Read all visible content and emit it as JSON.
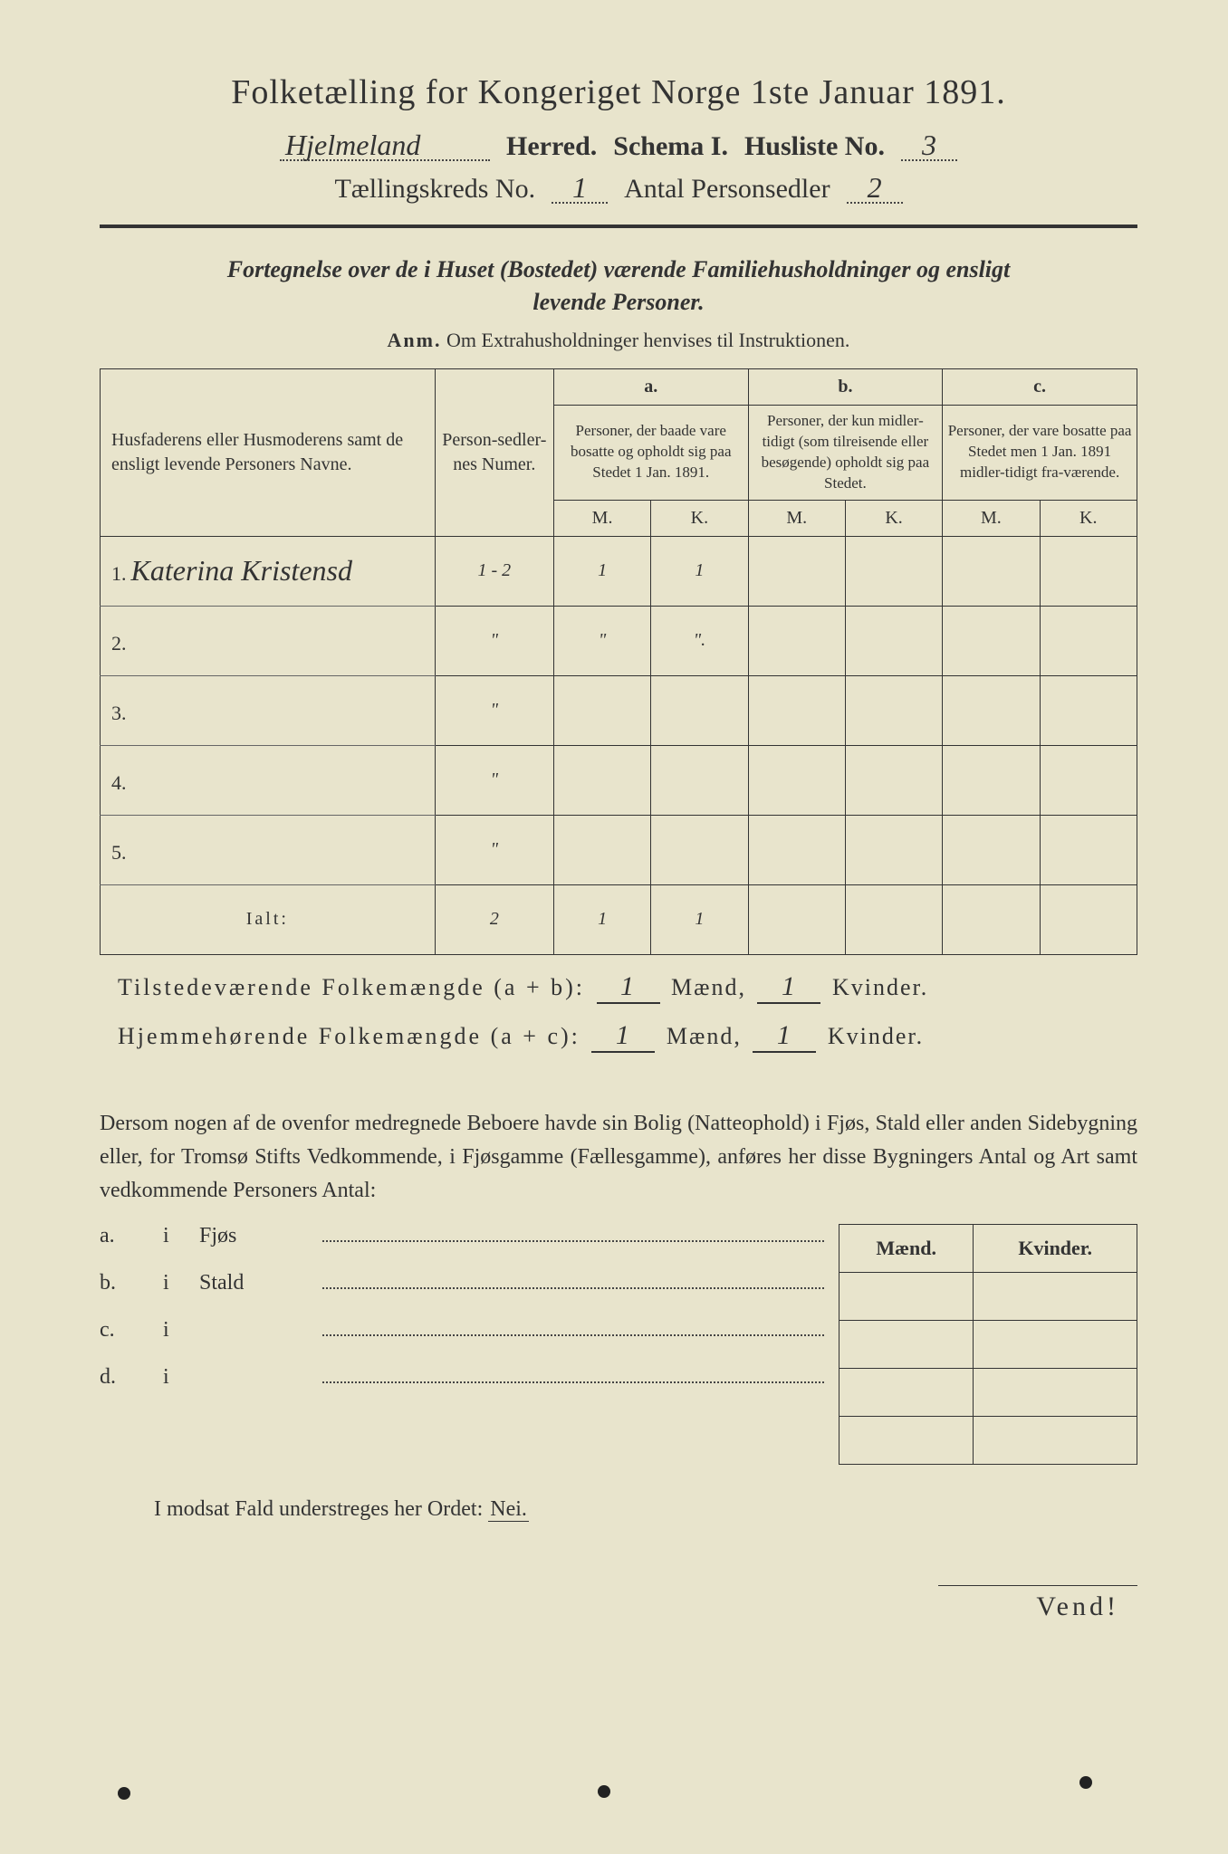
{
  "header": {
    "title": "Folketælling for Kongeriget Norge 1ste Januar 1891.",
    "herred": "Hjelmeland",
    "herred_label": "Herred.",
    "schema_label": "Schema I.",
    "husliste_label": "Husliste No.",
    "husliste_no": "3",
    "kreds_label": "Tællingskreds No.",
    "kreds_no": "1",
    "antal_label": "Antal Personsedler",
    "antal": "2"
  },
  "subtitle": {
    "line1": "Fortegnelse over de i Huset (Bostedet) værende Familiehusholdninger og ensligt",
    "line2": "levende Personer.",
    "anm_label": "Anm.",
    "anm_text": "Om Extrahusholdninger henvises til Instruktionen."
  },
  "table": {
    "columns": {
      "names": "Husfaderens eller Husmoderens samt de ensligt levende Personers Navne.",
      "person_no": "Person-sedler-nes Numer.",
      "a_label": "a.",
      "a_text": "Personer, der baade vare bosatte og opholdt sig paa Stedet 1 Jan. 1891.",
      "b_label": "b.",
      "b_text": "Personer, der kun midler-tidigt (som tilreisende eller besøgende) opholdt sig paa Stedet.",
      "c_label": "c.",
      "c_text": "Personer, der vare bosatte paa Stedet men 1 Jan. 1891 midler-tidigt fra-værende.",
      "M": "M.",
      "K": "K."
    },
    "rows": [
      {
        "n": "1.",
        "name": "Katerina Kristensd",
        "pno": "1 - 2",
        "aM": "1",
        "aK": "1",
        "bM": "",
        "bK": "",
        "cM": "",
        "cK": ""
      },
      {
        "n": "2.",
        "name": "",
        "pno": "\"",
        "aM": "\"",
        "aK": "\".",
        "bM": "",
        "bK": "",
        "cM": "",
        "cK": ""
      },
      {
        "n": "3.",
        "name": "",
        "pno": "\"",
        "aM": "",
        "aK": "",
        "bM": "",
        "bK": "",
        "cM": "",
        "cK": ""
      },
      {
        "n": "4.",
        "name": "",
        "pno": "\"",
        "aM": "",
        "aK": "",
        "bM": "",
        "bK": "",
        "cM": "",
        "cK": ""
      },
      {
        "n": "5.",
        "name": "",
        "pno": "\"",
        "aM": "",
        "aK": "",
        "bM": "",
        "bK": "",
        "cM": "",
        "cK": ""
      }
    ],
    "ialt_label": "Ialt:",
    "ialt": {
      "pno": "2",
      "aM": "1",
      "aK": "1"
    }
  },
  "totals": {
    "line1_a": "Tilstedeværende Folkemængde (a + b):",
    "line1_m": "1",
    "maend": "Mænd,",
    "line1_k": "1",
    "kvinder": "Kvinder.",
    "line2_a": "Hjemmehørende Folkemængde (a + c):",
    "line2_m": "1",
    "line2_k": "1"
  },
  "paragraph": "Dersom nogen af de ovenfor medregnede Beboere havde sin Bolig (Natteophold) i Fjøs, Stald eller anden Sidebygning eller, for Tromsø Stifts Vedkommende, i Fjøsgamme (Fællesgamme), anføres her disse Bygningers Antal og Art samt vedkommende Personers Antal:",
  "outbuildings": {
    "mk_m": "Mænd.",
    "mk_k": "Kvinder.",
    "rows": [
      {
        "lab": "a.",
        "i": "i",
        "what": "Fjøs"
      },
      {
        "lab": "b.",
        "i": "i",
        "what": "Stald"
      },
      {
        "lab": "c.",
        "i": "i",
        "what": ""
      },
      {
        "lab": "d.",
        "i": "i",
        "what": ""
      }
    ]
  },
  "footer": {
    "modsat": "I modsat Fald understreges her Ordet:",
    "nei": "Nei.",
    "vend": "Vend!"
  },
  "style": {
    "bg": "#e8e4cc",
    "ink": "#333333",
    "border_width": 1.5,
    "title_fontsize": 38,
    "body_fontsize": 24,
    "table_fontsize": 20,
    "hand_font": "Brush Script MT"
  }
}
